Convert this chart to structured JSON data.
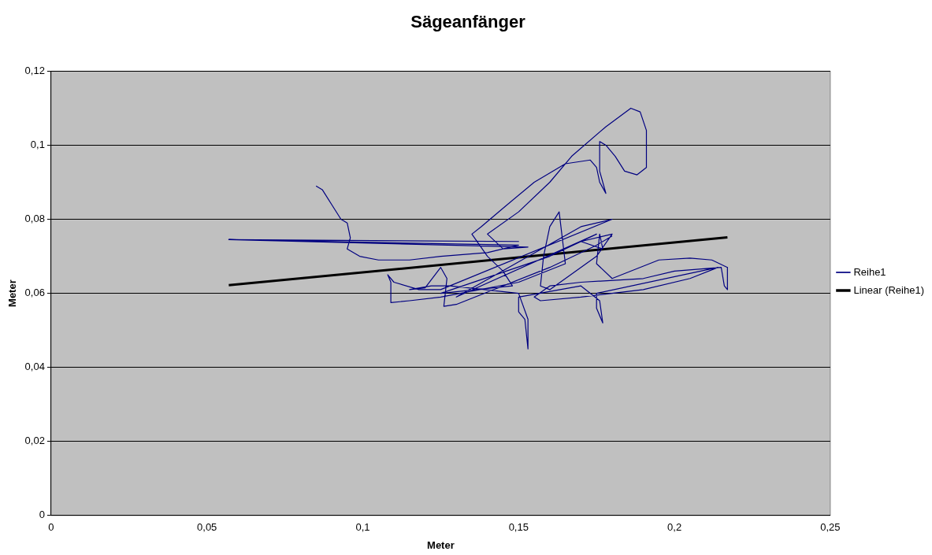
{
  "chart_data": {
    "type": "line",
    "title": "Sägeanfänger",
    "xlabel": "Meter",
    "ylabel": "Meter",
    "xlim": [
      0,
      0.25
    ],
    "xticks": [
      0,
      {
        "value": 0.05,
        "label": "0,05"
      },
      {
        "value": 0.1,
        "label": "0,1"
      },
      {
        "value": 0.15,
        "label": "0,15"
      },
      {
        "value": 0.2,
        "label": "0,2"
      },
      {
        "value": 0.25,
        "label": "0,25"
      }
    ],
    "ylim": [
      0,
      0.12
    ],
    "yticks": [
      0,
      {
        "value": 0.02,
        "label": "0,02"
      },
      {
        "value": 0.04,
        "label": "0,04"
      },
      {
        "value": 0.06,
        "label": "0,06"
      },
      {
        "value": 0.08,
        "label": "0,08"
      },
      {
        "value": 0.1,
        "label": "0,1"
      },
      {
        "value": 0.12,
        "label": "0,12"
      }
    ],
    "grid": "y",
    "legend": "right",
    "marker": "none",
    "line_style": "solid",
    "series": [
      {
        "name": "Reihe1",
        "color": "#000080",
        "x": [
          0.085,
          0.087,
          0.09,
          0.093,
          0.095,
          0.096,
          0.095,
          0.099,
          0.105,
          0.115,
          0.125,
          0.14,
          0.15,
          0.057,
          0.15,
          0.057,
          0.153,
          0.145,
          0.14,
          0.15,
          0.16,
          0.167,
          0.178,
          0.186,
          0.189,
          0.191,
          0.191,
          0.188,
          0.184,
          0.181,
          0.178,
          0.176,
          0.176,
          0.177,
          0.178,
          0.176,
          0.175,
          0.173,
          0.165,
          0.155,
          0.145,
          0.138,
          0.135,
          0.14,
          0.145,
          0.148,
          0.125,
          0.16,
          0.175,
          0.13,
          0.17,
          0.18,
          0.125,
          0.118,
          0.11,
          0.108,
          0.109,
          0.109,
          0.115,
          0.125,
          0.15,
          0.165,
          0.163,
          0.16,
          0.158,
          0.157,
          0.16,
          0.175,
          0.18,
          0.17,
          0.177,
          0.176,
          0.175,
          0.18,
          0.195,
          0.205,
          0.212,
          0.217,
          0.217,
          0.216,
          0.215,
          0.2,
          0.19,
          0.17,
          0.16,
          0.155,
          0.157,
          0.17,
          0.19,
          0.205,
          0.214,
          0.175,
          0.175,
          0.177,
          0.176,
          0.17,
          0.15,
          0.15,
          0.152,
          0.153,
          0.153,
          0.15,
          0.128,
          0.122,
          0.115,
          0.12,
          0.125,
          0.127,
          0.126,
          0.13,
          0.16,
          0.175,
          0.18
        ],
        "values": [
          0.089,
          0.088,
          0.084,
          0.08,
          0.079,
          0.075,
          0.072,
          0.07,
          0.069,
          0.069,
          0.07,
          0.071,
          0.073,
          0.0745,
          0.074,
          0.0745,
          0.0725,
          0.072,
          0.076,
          0.082,
          0.09,
          0.097,
          0.105,
          0.11,
          0.109,
          0.104,
          0.094,
          0.092,
          0.093,
          0.097,
          0.1,
          0.101,
          0.093,
          0.09,
          0.087,
          0.09,
          0.094,
          0.096,
          0.095,
          0.09,
          0.083,
          0.078,
          0.076,
          0.07,
          0.066,
          0.062,
          0.06,
          0.07,
          0.076,
          0.059,
          0.078,
          0.08,
          0.061,
          0.061,
          0.063,
          0.065,
          0.063,
          0.0575,
          0.058,
          0.059,
          0.063,
          0.068,
          0.082,
          0.078,
          0.07,
          0.062,
          0.061,
          0.07,
          0.076,
          0.074,
          0.072,
          0.076,
          0.068,
          0.064,
          0.069,
          0.0695,
          0.069,
          0.067,
          0.061,
          0.062,
          0.067,
          0.066,
          0.064,
          0.063,
          0.062,
          0.059,
          0.058,
          0.059,
          0.061,
          0.064,
          0.067,
          0.06,
          0.056,
          0.052,
          0.058,
          0.062,
          0.059,
          0.055,
          0.053,
          0.045,
          0.053,
          0.06,
          0.062,
          0.062,
          0.061,
          0.0615,
          0.067,
          0.064,
          0.0565,
          0.057,
          0.067,
          0.073,
          0.0755
        ]
      },
      {
        "name": "Linear (Reihe1)",
        "color": "#000000",
        "x": [
          0.057,
          0.217
        ],
        "values": [
          0.0622,
          0.0751
        ]
      }
    ]
  }
}
